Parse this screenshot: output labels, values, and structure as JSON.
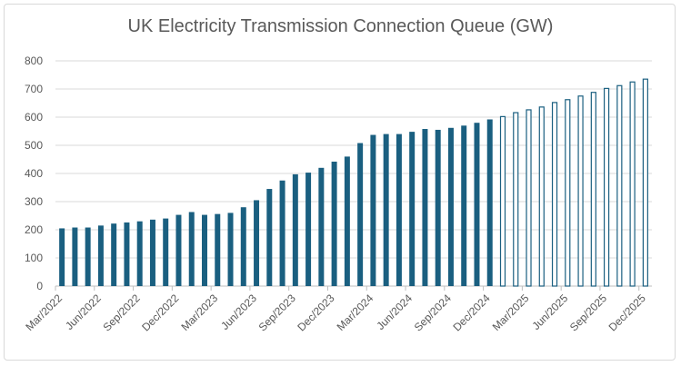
{
  "chart_data": {
    "type": "bar",
    "title": "UK Electricity Transmission Connection Queue (GW)",
    "xlabel": "",
    "ylabel": "",
    "ylim": [
      0,
      800
    ],
    "yticks": [
      0,
      100,
      200,
      300,
      400,
      500,
      600,
      700,
      800
    ],
    "grid": true,
    "bar_color": "#1a5f80",
    "categories": [
      "Mar/2022",
      "Apr/2022",
      "May/2022",
      "Jun/2022",
      "Jul/2022",
      "Aug/2022",
      "Sep/2022",
      "Oct/2022",
      "Nov/2022",
      "Dec/2022",
      "Jan/2023",
      "Feb/2023",
      "Mar/2023",
      "Apr/2023",
      "May/2023",
      "Jun/2023",
      "Jul/2023",
      "Aug/2023",
      "Sep/2023",
      "Oct/2023",
      "Nov/2023",
      "Dec/2023",
      "Jan/2024",
      "Feb/2024",
      "Mar/2024",
      "Apr/2024",
      "May/2024",
      "Jun/2024",
      "Jul/2024",
      "Aug/2024",
      "Sep/2024",
      "Oct/2024",
      "Nov/2024",
      "Dec/2024",
      "Jan/2025",
      "Feb/2025",
      "Mar/2025",
      "Apr/2025",
      "May/2025",
      "Jun/2025",
      "Jul/2025",
      "Aug/2025",
      "Sep/2025",
      "Oct/2025",
      "Nov/2025",
      "Dec/2025"
    ],
    "tick_labels": [
      "Mar/2022",
      "Jun/2022",
      "Sep/2022",
      "Dec/2022",
      "Mar/2023",
      "Jun/2023",
      "Sep/2023",
      "Dec/2023",
      "Mar/2024",
      "Jun/2024",
      "Sep/2024",
      "Dec/2024",
      "Mar/2025",
      "Jun/2025",
      "Sep/2025",
      "Dec/2025"
    ],
    "values": [
      205,
      208,
      208,
      215,
      222,
      226,
      230,
      236,
      240,
      253,
      263,
      253,
      256,
      260,
      280,
      305,
      345,
      375,
      397,
      403,
      420,
      442,
      460,
      508,
      537,
      540,
      540,
      548,
      558,
      555,
      562,
      570,
      580,
      592,
      602,
      616,
      626,
      636,
      652,
      662,
      675,
      688,
      702,
      712,
      725,
      735
    ],
    "style": [
      "filled",
      "filled",
      "filled",
      "filled",
      "filled",
      "filled",
      "filled",
      "filled",
      "filled",
      "filled",
      "filled",
      "filled",
      "filled",
      "filled",
      "filled",
      "filled",
      "filled",
      "filled",
      "filled",
      "filled",
      "filled",
      "filled",
      "filled",
      "filled",
      "filled",
      "filled",
      "filled",
      "filled",
      "filled",
      "filled",
      "filled",
      "filled",
      "filled",
      "filled",
      "outline",
      "outline",
      "outline",
      "outline",
      "outline",
      "outline",
      "outline",
      "outline",
      "outline",
      "outline",
      "outline",
      "outline"
    ]
  }
}
